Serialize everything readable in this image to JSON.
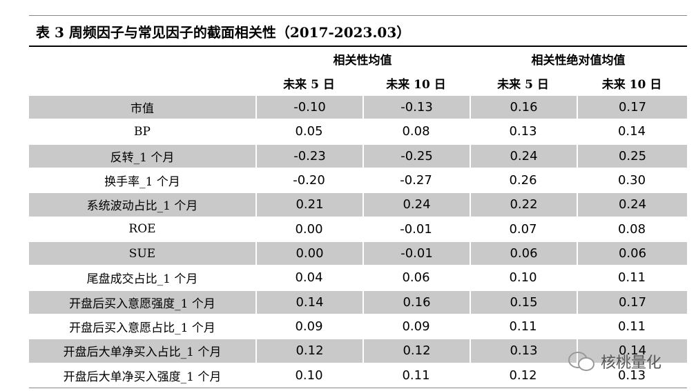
{
  "title": "表 3 周频因子与常见因子的截面相关性（2017-2023.03）",
  "table": {
    "group_headers": [
      "相关性均值",
      "相关性绝对值均值"
    ],
    "sub_headers": [
      "未来 5 日",
      "未来 10 日",
      "未来 5 日",
      "未来 10 日"
    ],
    "rows": [
      [
        "市值",
        "-0.10",
        "-0.13",
        "0.16",
        "0.17"
      ],
      [
        "BP",
        "0.05",
        "0.08",
        "0.13",
        "0.14"
      ],
      [
        "反转_1 个月",
        "-0.23",
        "-0.25",
        "0.24",
        "0.25"
      ],
      [
        "换手率_1 个月",
        "-0.20",
        "-0.27",
        "0.26",
        "0.30"
      ],
      [
        "系统波动占比_1 个月",
        "0.21",
        "0.24",
        "0.22",
        "0.24"
      ],
      [
        "ROE",
        "0.00",
        "-0.01",
        "0.07",
        "0.08"
      ],
      [
        "SUE",
        "0.00",
        "-0.01",
        "0.06",
        "0.06"
      ],
      [
        "尾盘成交占比_1 个月",
        "0.04",
        "0.06",
        "0.10",
        "0.11"
      ],
      [
        "开盘后买入意愿强度_1 个月",
        "0.14",
        "0.16",
        "0.15",
        "0.17"
      ],
      [
        "开盘后买入意愿占比_1 个月",
        "0.09",
        "0.09",
        "0.11",
        "0.11"
      ],
      [
        "开盘后大单净买入占比_1 个月",
        "0.12",
        "0.12",
        "0.13",
        "0.14"
      ],
      [
        "开盘后大单净买入强度_1 个月",
        "0.10",
        "0.11",
        "0.12",
        "0.13"
      ]
    ]
  },
  "watermark": "核桃量化"
}
